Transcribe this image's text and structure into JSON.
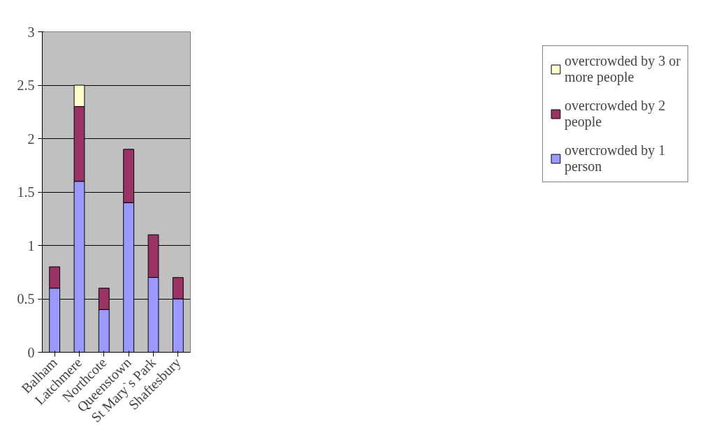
{
  "chart_data": {
    "type": "bar",
    "stacked": true,
    "categories": [
      "Balham",
      "Latchmere",
      "Northcote",
      "Queenstown",
      "St Mary`s Park",
      "Shaftesbury"
    ],
    "series": [
      {
        "name": "overcrowded by 1 person",
        "color": "#9999ff",
        "values": [
          0.6,
          1.6,
          0.4,
          1.4,
          0.7,
          0.5
        ]
      },
      {
        "name": "overcrowded by 2 people",
        "color": "#993366",
        "values": [
          0.2,
          0.7,
          0.2,
          0.5,
          0.4,
          0.2
        ]
      },
      {
        "name": "overcrowded by 3 or more people",
        "color": "#ffffcc",
        "values": [
          null,
          0.2,
          null,
          null,
          null,
          null
        ]
      }
    ],
    "ylim": [
      0,
      3
    ],
    "yticks": [
      0,
      0.5,
      1,
      1.5,
      2,
      2.5,
      3
    ],
    "grid": "y",
    "legend": "right"
  }
}
